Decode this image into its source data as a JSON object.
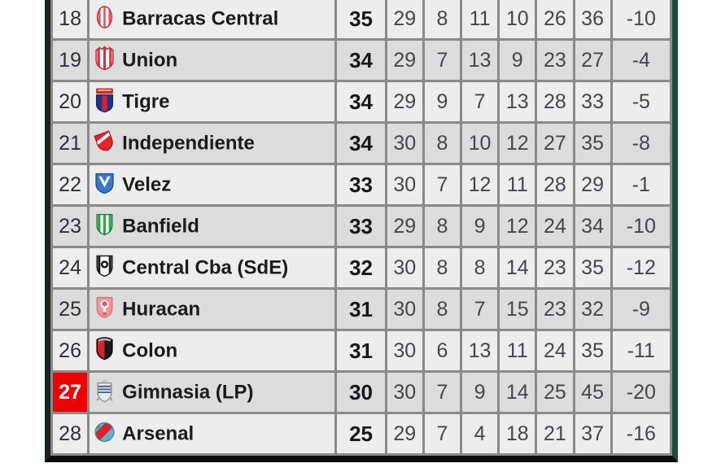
{
  "colors": {
    "highlight_red": "#ee0000",
    "frame_left": "#18241c",
    "frame_right": "#1f4a38",
    "frame_bottom": "#0c0c0c",
    "grid": "#8a8a8a",
    "row_light": "#ededed",
    "row_dark": "#dcdcdc"
  },
  "table": {
    "columns": [
      "position",
      "team",
      "points",
      "played",
      "won",
      "drawn",
      "lost",
      "goals_for",
      "goals_against",
      "goal_diff"
    ],
    "rows": [
      {
        "pos": "18",
        "team": "Barracas Central",
        "badge": "barracas-central",
        "pts": "35",
        "played": "29",
        "won": "8",
        "drawn": "11",
        "lost": "10",
        "gf": "26",
        "ga": "36",
        "diff": "-10",
        "highlight": false
      },
      {
        "pos": "19",
        "team": "Union",
        "badge": "union",
        "pts": "34",
        "played": "29",
        "won": "7",
        "drawn": "13",
        "lost": "9",
        "gf": "23",
        "ga": "27",
        "diff": "-4",
        "highlight": false
      },
      {
        "pos": "20",
        "team": "Tigre",
        "badge": "tigre",
        "pts": "34",
        "played": "29",
        "won": "9",
        "drawn": "7",
        "lost": "13",
        "gf": "28",
        "ga": "33",
        "diff": "-5",
        "highlight": false
      },
      {
        "pos": "21",
        "team": "Independiente",
        "badge": "independiente",
        "pts": "34",
        "played": "30",
        "won": "8",
        "drawn": "10",
        "lost": "12",
        "gf": "27",
        "ga": "35",
        "diff": "-8",
        "highlight": false
      },
      {
        "pos": "22",
        "team": "Velez",
        "badge": "velez",
        "pts": "33",
        "played": "30",
        "won": "7",
        "drawn": "12",
        "lost": "11",
        "gf": "28",
        "ga": "29",
        "diff": "-1",
        "highlight": false
      },
      {
        "pos": "23",
        "team": "Banfield",
        "badge": "banfield",
        "pts": "33",
        "played": "29",
        "won": "8",
        "drawn": "9",
        "lost": "12",
        "gf": "24",
        "ga": "34",
        "diff": "-10",
        "highlight": false
      },
      {
        "pos": "24",
        "team": "Central Cba (SdE)",
        "badge": "central-cordoba",
        "pts": "32",
        "played": "30",
        "won": "8",
        "drawn": "8",
        "lost": "14",
        "gf": "23",
        "ga": "35",
        "diff": "-12",
        "highlight": false
      },
      {
        "pos": "25",
        "team": "Huracan",
        "badge": "huracan",
        "pts": "31",
        "played": "30",
        "won": "8",
        "drawn": "7",
        "lost": "15",
        "gf": "23",
        "ga": "32",
        "diff": "-9",
        "highlight": false
      },
      {
        "pos": "26",
        "team": "Colon",
        "badge": "colon",
        "pts": "31",
        "played": "30",
        "won": "6",
        "drawn": "13",
        "lost": "11",
        "gf": "24",
        "ga": "35",
        "diff": "-11",
        "highlight": false
      },
      {
        "pos": "27",
        "team": "Gimnasia (LP)",
        "badge": "gimnasia",
        "pts": "30",
        "played": "30",
        "won": "7",
        "drawn": "9",
        "lost": "14",
        "gf": "25",
        "ga": "45",
        "diff": "-20",
        "highlight": true
      },
      {
        "pos": "28",
        "team": "Arsenal",
        "badge": "arsenal",
        "pts": "25",
        "played": "29",
        "won": "7",
        "drawn": "4",
        "lost": "18",
        "gf": "21",
        "ga": "37",
        "diff": "-16",
        "highlight": false
      }
    ]
  }
}
